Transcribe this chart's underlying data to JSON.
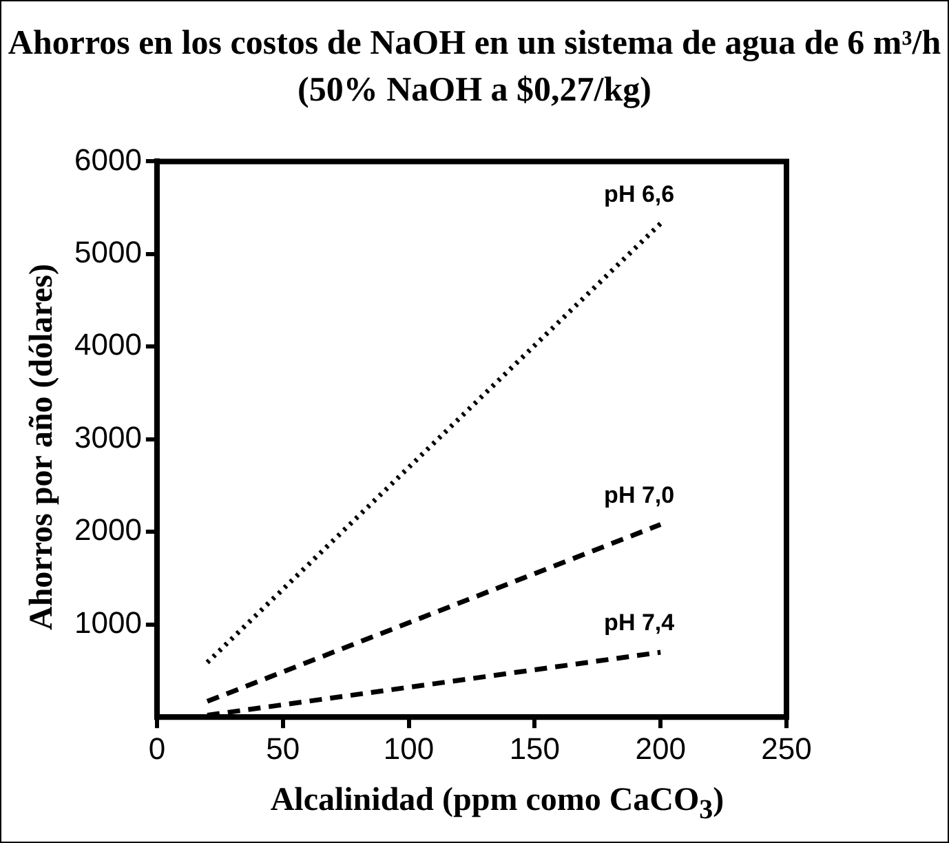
{
  "chart_data": {
    "type": "line",
    "title": "Ahorros en los costos de NaOH en un sistema de agua de 6 m³/h (50% NaOH a $0,27/kg)",
    "xlabel": "Alcalinidad (ppm como CaCO$_{3}$)",
    "ylabel": "Ahorros por año (dólares)",
    "x": [
      20,
      200
    ],
    "series": [
      {
        "name": "pH 6,6",
        "color": "#000000",
        "values": [
          590,
          5330
        ],
        "line_style": "dotted"
      },
      {
        "name": "pH 7,0",
        "color": "#000000",
        "values": [
          170,
          2080
        ],
        "line_style": "dashed"
      },
      {
        "name": "pH 7,4",
        "color": "#000000",
        "values": [
          20,
          700
        ],
        "line_style": "dashed"
      }
    ],
    "xlim": [
      0,
      250
    ],
    "xticks": [
      0,
      50,
      100,
      150,
      200,
      250
    ],
    "ylim": [
      0,
      6000
    ],
    "yticks": [
      1000,
      2000,
      3000,
      4000,
      5000,
      6000
    ],
    "grid": false,
    "legend": false,
    "marker": "none"
  }
}
